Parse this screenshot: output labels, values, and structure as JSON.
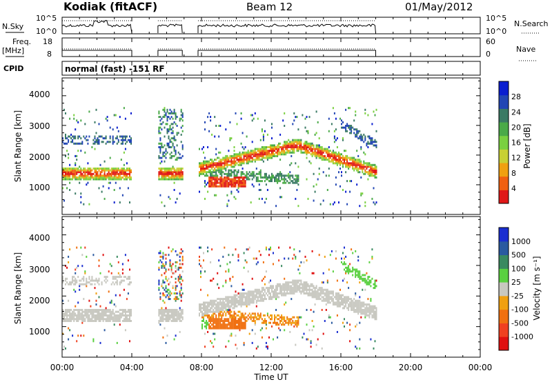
{
  "header": {
    "radar": "Kodiak (fitACF)",
    "beam": "Beam 12",
    "date": "01/May/2012"
  },
  "panels": {
    "nsky_label": "N.Sky",
    "nsky_ticks": [
      "10^5",
      "10^0"
    ],
    "nsearch_label": "N.Search",
    "nsearch_ticks": [
      "10^5",
      "10^0"
    ],
    "freq_label": "Freq.",
    "freq_unit": "[MHz]",
    "freq_ticks": [
      "18",
      "8"
    ],
    "nave_label": "Nave",
    "nave_ticks": [
      "60",
      "0"
    ],
    "cpid_label": "CPID",
    "cpid_text": "normal (fast) -151 RF"
  },
  "chart_data": [
    {
      "type": "heatmap",
      "name": "power",
      "ylabel": "Slant Range [km]",
      "y_ticks": [
        "4000",
        "3000",
        "2000",
        "1000"
      ],
      "ylim": [
        0,
        4600
      ],
      "colorbar_label": "Power [dB]",
      "colorbar_ticks": [
        "28",
        "24",
        "20",
        "16",
        "12",
        "8",
        "4"
      ],
      "colorbar_colors": [
        "#0a1ed0",
        "#2246b4",
        "#3a7a64",
        "#4aaa48",
        "#7ad040",
        "#c8d034",
        "#f0a010",
        "#f06010",
        "#e01818"
      ],
      "data_gaps_hours": [
        [
          4.0,
          5.5
        ],
        [
          6.9,
          7.8
        ],
        [
          18.0,
          24.0
        ]
      ],
      "features": [
        {
          "name": "band-1",
          "x_hours": [
            0.0,
            4.0
          ],
          "range_km": [
            1150,
            1550
          ]
        },
        {
          "name": "band-2",
          "x_hours": [
            5.5,
            6.9
          ],
          "range_km": [
            1000,
            1700
          ]
        },
        {
          "name": "rising-band",
          "x_hours": [
            7.8,
            18.0
          ],
          "range_km": [
            1200,
            2400
          ]
        },
        {
          "name": "hot-spot",
          "x_hours": [
            8.5,
            10.5
          ],
          "range_km": [
            900,
            1200
          ]
        }
      ]
    },
    {
      "type": "heatmap",
      "name": "velocity",
      "ylabel": "Slant Range [km]",
      "y_ticks": [
        "4000",
        "3000",
        "2000",
        "1000"
      ],
      "ylim": [
        0,
        4600
      ],
      "colorbar_label": "Velocity [m s⁻¹]",
      "colorbar_ticks": [
        "1000",
        "500",
        "100",
        "25",
        "-25",
        "-100",
        "-500",
        "-1000"
      ],
      "colorbar_colors": [
        "#1a2ed0",
        "#2a5aa0",
        "#3a8a60",
        "#5ad040",
        "#c8c8c0",
        "#f0a010",
        "#f07010",
        "#f04020",
        "#e01010"
      ],
      "x_ticks": [
        "00:00",
        "04:00",
        "08:00",
        "12:00",
        "16:00",
        "20:00",
        "00:00"
      ],
      "x_tick_hours": [
        0,
        4,
        8,
        12,
        16,
        20,
        24
      ],
      "xlabel": "Time UT",
      "xlim": [
        0,
        24
      ]
    }
  ]
}
